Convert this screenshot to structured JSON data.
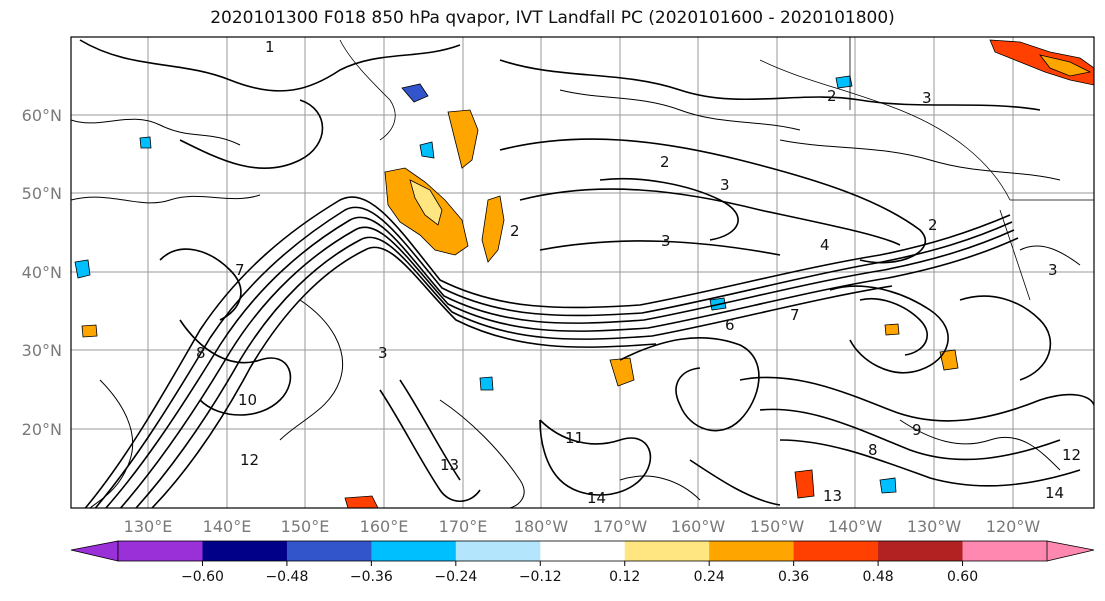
{
  "title": "2020101300 F018 850 hPa qvapor, IVT Landfall PC (2020101600 - 2020101800)",
  "map": {
    "lat_labels": [
      "60°N",
      "50°N",
      "40°N",
      "30°N",
      "20°N"
    ],
    "lon_labels": [
      "130°E",
      "140°E",
      "150°E",
      "160°E",
      "170°E",
      "180°W",
      "170°W",
      "160°W",
      "150°W",
      "140°W",
      "130°W",
      "120°W"
    ],
    "contour_labels": [
      "1",
      "2",
      "3",
      "2",
      "3",
      "3",
      "2",
      "4",
      "3",
      "2",
      "7",
      "8",
      "12",
      "13",
      "11",
      "14",
      "13",
      "14",
      "12",
      "9",
      "8",
      "7",
      "6",
      "10",
      "3"
    ]
  },
  "colorbar": {
    "colors": [
      "#9a30d8",
      "#000088",
      "#3355cc",
      "#00bfff",
      "#b3e5fc",
      "#ffffff",
      "#ffe680",
      "#ffa500",
      "#ff4000",
      "#b22222",
      "#ff88b0"
    ],
    "tick_labels": [
      "−0.60",
      "−0.48",
      "−0.36",
      "−0.24",
      "−0.12",
      "0.12",
      "0.24",
      "0.36",
      "0.48",
      "0.60"
    ]
  }
}
